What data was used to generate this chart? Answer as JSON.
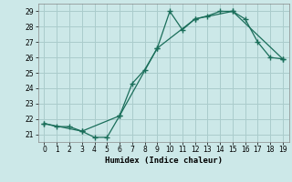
{
  "xlabel": "Humidex (Indice chaleur)",
  "bg_color": "#cce8e8",
  "grid_color": "#aacccc",
  "line_color": "#1a6e5a",
  "ylim": [
    20.5,
    29.5
  ],
  "xlim": [
    -0.5,
    19.5
  ],
  "yticks": [
    21,
    22,
    23,
    24,
    25,
    26,
    27,
    28,
    29
  ],
  "xticks": [
    0,
    1,
    2,
    3,
    4,
    5,
    6,
    7,
    8,
    9,
    10,
    11,
    12,
    13,
    14,
    15,
    16,
    17,
    18,
    19
  ],
  "curve1_x": [
    0,
    1,
    2,
    3,
    4,
    5,
    6,
    7,
    8,
    9,
    10,
    11,
    12,
    13,
    14,
    15,
    16,
    17,
    18,
    19
  ],
  "curve1_y": [
    21.7,
    21.5,
    21.5,
    21.2,
    20.8,
    20.8,
    22.2,
    24.3,
    25.2,
    26.6,
    29.0,
    27.8,
    28.5,
    28.7,
    29.0,
    29.0,
    28.5,
    27.0,
    26.0,
    25.9
  ],
  "curve2_x": [
    0,
    3,
    6,
    9,
    12,
    15,
    19
  ],
  "curve2_y": [
    21.7,
    21.2,
    22.2,
    26.6,
    28.5,
    29.0,
    25.9
  ]
}
